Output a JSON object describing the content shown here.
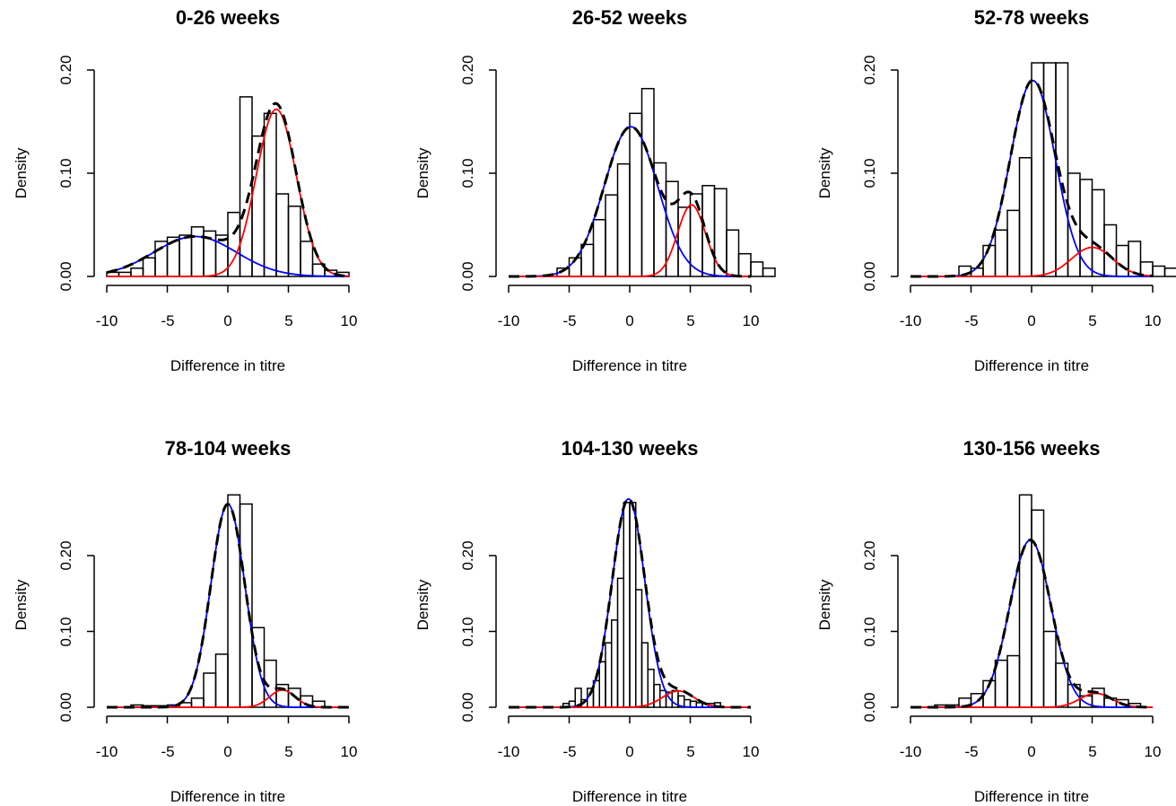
{
  "chart_data": [
    {
      "type": "bar",
      "title": "0-26 weeks",
      "xlabel": "Difference in titre",
      "ylabel": "Density",
      "xlim": [
        -10,
        10
      ],
      "ylim": [
        0,
        0.2
      ],
      "xticks": [
        "-10",
        "-5",
        "0",
        "5",
        "10"
      ],
      "yticks": [
        "0.00",
        "0.10",
        "0.20"
      ],
      "bin_start": -10,
      "bin_width": 1,
      "values": [
        0.004,
        0.004,
        0.008,
        0.018,
        0.034,
        0.038,
        0.04,
        0.048,
        0.044,
        0.04,
        0.062,
        0.174,
        0.136,
        0.158,
        0.08,
        0.068,
        0.034,
        0.012,
        0.006,
        0.004
      ],
      "series": [
        {
          "name": "",
          "color": "#0000ff",
          "style": "solid",
          "components": [
            {
              "w": 0.33,
              "mu": -2.7,
              "sd": 3.4
            }
          ]
        },
        {
          "name": "",
          "color": "#ff0000",
          "style": "solid",
          "components": [
            {
              "w": 0.67,
              "mu": 4.0,
              "sd": 1.65
            }
          ]
        },
        {
          "name": "",
          "color": "#000000",
          "style": "dashed",
          "components": [
            {
              "w": 0.33,
              "mu": -2.7,
              "sd": 3.4
            },
            {
              "w": 0.67,
              "mu": 4.0,
              "sd": 1.65
            }
          ]
        }
      ]
    },
    {
      "type": "bar",
      "title": "26-52 weeks",
      "xlabel": "Difference in titre",
      "ylabel": "Density",
      "xlim": [
        -10,
        10
      ],
      "ylim": [
        0,
        0.2
      ],
      "xticks": [
        "-10",
        "-5",
        "0",
        "5",
        "10"
      ],
      "yticks": [
        "0.00",
        "0.10",
        "0.20"
      ],
      "bin_start": -6,
      "bin_width": 1,
      "values": [
        0.008,
        0.018,
        0.031,
        0.055,
        0.079,
        0.109,
        0.158,
        0.182,
        0.11,
        0.092,
        0.067,
        0.08,
        0.088,
        0.085,
        0.045,
        0.022,
        0.014,
        0.008
      ],
      "series": [
        {
          "name": "",
          "color": "#0000ff",
          "style": "solid",
          "components": [
            {
              "w": 0.8,
              "mu": 0.1,
              "sd": 2.2
            }
          ]
        },
        {
          "name": "",
          "color": "#ff0000",
          "style": "solid",
          "components": [
            {
              "w": 0.2,
              "mu": 5.1,
              "sd": 1.15
            }
          ]
        },
        {
          "name": "",
          "color": "#000000",
          "style": "dashed",
          "components": [
            {
              "w": 0.8,
              "mu": 0.1,
              "sd": 2.2
            },
            {
              "w": 0.2,
              "mu": 5.1,
              "sd": 1.15
            }
          ]
        }
      ]
    },
    {
      "type": "bar",
      "title": "52-78 weeks",
      "xlabel": "Difference in titre",
      "ylabel": "Density",
      "xlim": [
        -10,
        10
      ],
      "ylim": [
        0,
        0.2
      ],
      "xticks": [
        "-10",
        "-5",
        "0",
        "5",
        "10"
      ],
      "yticks": [
        "0.00",
        "0.10",
        "0.20"
      ],
      "bin_start": -6,
      "bin_width": 1,
      "values": [
        0.01,
        0.008,
        0.03,
        0.045,
        0.064,
        0.115,
        0.225,
        0.225,
        0.225,
        0.1,
        0.094,
        0.084,
        0.05,
        0.03,
        0.034,
        0.014,
        0.01,
        0.008,
        0.006,
        0.006
      ],
      "series": [
        {
          "name": "",
          "color": "#0000ff",
          "style": "solid",
          "components": [
            {
              "w": 0.88,
              "mu": 0.1,
              "sd": 1.85
            }
          ]
        },
        {
          "name": "",
          "color": "#ff0000",
          "style": "solid",
          "components": [
            {
              "w": 0.12,
              "mu": 5.0,
              "sd": 1.7
            }
          ]
        },
        {
          "name": "",
          "color": "#000000",
          "style": "dashed",
          "components": [
            {
              "w": 0.88,
              "mu": 0.1,
              "sd": 1.85
            },
            {
              "w": 0.12,
              "mu": 5.0,
              "sd": 1.7
            }
          ]
        }
      ]
    },
    {
      "type": "bar",
      "title": "78-104 weeks",
      "xlabel": "Difference in titre",
      "ylabel": "Density",
      "xlim": [
        -10,
        10
      ],
      "ylim": [
        0,
        0.25
      ],
      "xticks": [
        "-10",
        "-5",
        "0",
        "5",
        "10"
      ],
      "yticks": [
        "0.00",
        "0.10",
        "0.20"
      ],
      "bin_start": -8,
      "bin_width": 1,
      "values": [
        0.003,
        0.002,
        0.002,
        0.003,
        0.006,
        0.012,
        0.045,
        0.07,
        0.28,
        0.268,
        0.105,
        0.062,
        0.03,
        0.025,
        0.015,
        0.008
      ],
      "series": [
        {
          "name": "",
          "color": "#0000ff",
          "style": "solid",
          "components": [
            {
              "w": 0.94,
              "mu": 0.0,
              "sd": 1.4
            }
          ]
        },
        {
          "name": "",
          "color": "#ff0000",
          "style": "solid",
          "components": [
            {
              "w": 0.06,
              "mu": 4.5,
              "sd": 1.05
            }
          ]
        },
        {
          "name": "",
          "color": "#000000",
          "style": "dashed",
          "components": [
            {
              "w": 0.94,
              "mu": 0.0,
              "sd": 1.4
            },
            {
              "w": 0.06,
              "mu": 4.5,
              "sd": 1.05
            }
          ]
        }
      ]
    },
    {
      "type": "bar",
      "title": "104-130 weeks",
      "xlabel": "Difference in titre",
      "ylabel": "Density",
      "xlim": [
        -10,
        10
      ],
      "ylim": [
        0,
        0.25
      ],
      "xticks": [
        "-10",
        "-5",
        "0",
        "5",
        "10"
      ],
      "yticks": [
        "0.00",
        "0.10",
        "0.20"
      ],
      "bin_start": -5.5,
      "bin_width": 0.5,
      "values": [
        0.005,
        0.008,
        0.025,
        0.01,
        0.025,
        0.035,
        0.06,
        0.085,
        0.115,
        0.17,
        0.27,
        0.27,
        0.155,
        0.085,
        0.05,
        0.03,
        0.022,
        0.02,
        0.022,
        0.015,
        0.01,
        0.008,
        0.006,
        0.005,
        0.005,
        0.006
      ],
      "series": [
        {
          "name": "",
          "color": "#0000ff",
          "style": "solid",
          "components": [
            {
              "w": 0.93,
              "mu": -0.1,
              "sd": 1.35
            }
          ]
        },
        {
          "name": "",
          "color": "#ff0000",
          "style": "solid",
          "components": [
            {
              "w": 0.07,
              "mu": 4.0,
              "sd": 1.3
            }
          ]
        },
        {
          "name": "",
          "color": "#000000",
          "style": "dashed",
          "components": [
            {
              "w": 0.93,
              "mu": -0.1,
              "sd": 1.35
            },
            {
              "w": 0.07,
              "mu": 4.0,
              "sd": 1.3
            }
          ]
        }
      ]
    },
    {
      "type": "bar",
      "title": "130-156 weeks",
      "xlabel": "Difference in titre",
      "ylabel": "Density",
      "xlim": [
        -10,
        10
      ],
      "ylim": [
        0,
        0.25
      ],
      "xticks": [
        "-10",
        "-5",
        "0",
        "5",
        "10"
      ],
      "yticks": [
        "0.00",
        "0.10",
        "0.20"
      ],
      "bin_start": -8,
      "bin_width": 1,
      "values": [
        0.003,
        0.003,
        0.012,
        0.018,
        0.035,
        0.062,
        0.068,
        0.28,
        0.26,
        0.1,
        0.058,
        0.03,
        0.015,
        0.025,
        0.012,
        0.01,
        0.005
      ],
      "series": [
        {
          "name": "",
          "color": "#0000ff",
          "style": "solid",
          "components": [
            {
              "w": 0.94,
              "mu": -0.1,
              "sd": 1.7
            }
          ]
        },
        {
          "name": "",
          "color": "#ff0000",
          "style": "solid",
          "components": [
            {
              "w": 0.06,
              "mu": 5.3,
              "sd": 1.3
            }
          ]
        },
        {
          "name": "",
          "color": "#000000",
          "style": "dashed",
          "components": [
            {
              "w": 0.94,
              "mu": -0.1,
              "sd": 1.7
            },
            {
              "w": 0.06,
              "mu": 5.3,
              "sd": 1.3
            }
          ]
        }
      ]
    }
  ]
}
